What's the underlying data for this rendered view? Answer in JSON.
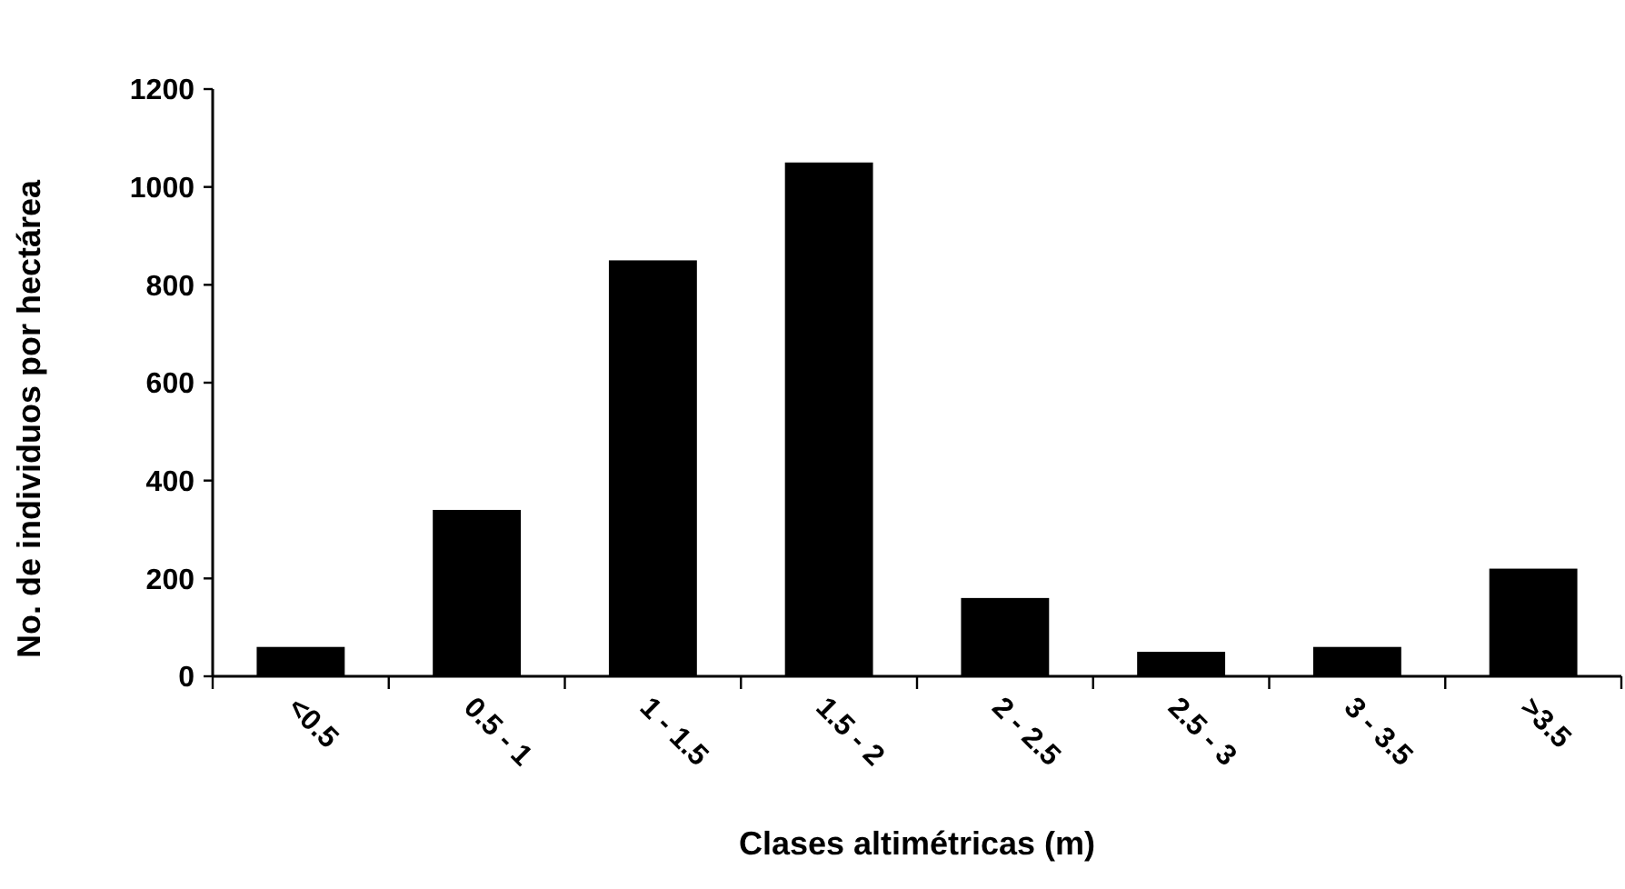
{
  "chart_data": {
    "type": "bar",
    "xlabel": "Clases altimétricas (m)",
    "ylabel": "No. de individuos por hectárea",
    "categories": [
      "<0.5",
      "0.5 - 1",
      "1 - 1.5",
      "1.5 - 2",
      "2 - 2.5",
      "2.5 - 3",
      "3 - 3.5",
      ">3.5"
    ],
    "values": [
      60,
      340,
      850,
      1050,
      160,
      50,
      60,
      220
    ],
    "color": "#000000",
    "ylim": [
      0,
      1200
    ],
    "yticks": [
      0,
      200,
      400,
      600,
      800,
      1000,
      1200
    ],
    "grid": false
  }
}
